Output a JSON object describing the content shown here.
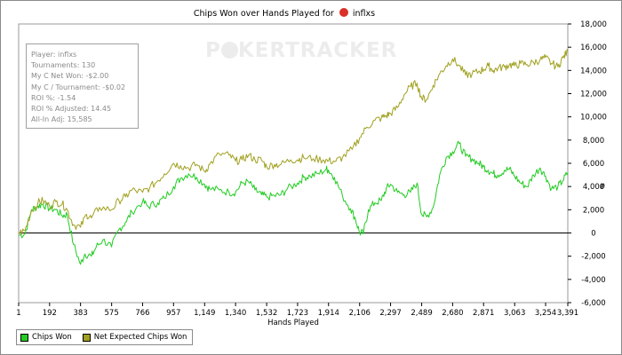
{
  "chart_data": {
    "type": "line",
    "title_prefix": "Chips Won over Hands Played for",
    "title_player": "inflxs",
    "xlabel": "Hands Played",
    "ylabel": "",
    "y_unit_label": "#",
    "xlim": [
      1,
      3391
    ],
    "ylim": [
      -6000,
      18000
    ],
    "x_ticks": [
      1,
      192,
      383,
      575,
      766,
      957,
      1149,
      1340,
      1532,
      1723,
      1914,
      2106,
      2297,
      2489,
      2680,
      2871,
      3063,
      3254,
      3391
    ],
    "x_tick_labels": [
      "1",
      "192",
      "383",
      "575",
      "766",
      "957",
      "1,149",
      "1,340",
      "1,532",
      "1,723",
      "1,914",
      "2,106",
      "2,297",
      "2,489",
      "2,680",
      "2,871",
      "3,063",
      "3,254",
      "3,391"
    ],
    "y_ticks": [
      -6000,
      -4000,
      -2000,
      0,
      2000,
      4000,
      6000,
      8000,
      10000,
      12000,
      14000,
      16000,
      18000
    ],
    "y_tick_labels": [
      "-6,000",
      "-4,000",
      "-2,000",
      "0",
      "2,000",
      "4,000",
      "6,000",
      "8,000",
      "10,000",
      "12,000",
      "14,000",
      "16,000",
      "18,000"
    ],
    "series": [
      {
        "name": "Chips Won",
        "color": "#22cc22",
        "points": [
          [
            1,
            -200
          ],
          [
            40,
            -100
          ],
          [
            80,
            2000
          ],
          [
            120,
            2300
          ],
          [
            150,
            2500
          ],
          [
            192,
            2100
          ],
          [
            230,
            2000
          ],
          [
            270,
            1500
          ],
          [
            300,
            1600
          ],
          [
            340,
            -1000
          ],
          [
            383,
            -2700
          ],
          [
            410,
            -1800
          ],
          [
            450,
            -2000
          ],
          [
            480,
            -1200
          ],
          [
            520,
            -600
          ],
          [
            575,
            -1200
          ],
          [
            620,
            300
          ],
          [
            660,
            900
          ],
          [
            700,
            1800
          ],
          [
            766,
            2700
          ],
          [
            800,
            2300
          ],
          [
            860,
            2600
          ],
          [
            900,
            3000
          ],
          [
            957,
            4000
          ],
          [
            1000,
            4700
          ],
          [
            1050,
            5100
          ],
          [
            1100,
            4800
          ],
          [
            1149,
            4200
          ],
          [
            1180,
            3800
          ],
          [
            1240,
            3700
          ],
          [
            1300,
            3500
          ],
          [
            1340,
            3500
          ],
          [
            1380,
            4300
          ],
          [
            1420,
            4400
          ],
          [
            1460,
            3700
          ],
          [
            1500,
            3300
          ],
          [
            1532,
            3100
          ],
          [
            1580,
            3200
          ],
          [
            1620,
            3300
          ],
          [
            1660,
            3800
          ],
          [
            1723,
            4300
          ],
          [
            1760,
            4800
          ],
          [
            1800,
            4900
          ],
          [
            1850,
            5100
          ],
          [
            1900,
            5500
          ],
          [
            1914,
            5400
          ],
          [
            1950,
            4800
          ],
          [
            2000,
            3200
          ],
          [
            2050,
            2100
          ],
          [
            2080,
            1200
          ],
          [
            2106,
            0
          ],
          [
            2130,
            0
          ],
          [
            2160,
            2000
          ],
          [
            2200,
            2600
          ],
          [
            2240,
            2800
          ],
          [
            2270,
            3800
          ],
          [
            2297,
            4200
          ],
          [
            2340,
            3500
          ],
          [
            2380,
            3300
          ],
          [
            2420,
            3500
          ],
          [
            2460,
            4300
          ],
          [
            2489,
            1600
          ],
          [
            2520,
            1400
          ],
          [
            2560,
            2200
          ],
          [
            2600,
            5000
          ],
          [
            2640,
            6500
          ],
          [
            2680,
            7000
          ],
          [
            2720,
            7700
          ],
          [
            2760,
            6600
          ],
          [
            2800,
            6400
          ],
          [
            2840,
            6000
          ],
          [
            2871,
            5700
          ],
          [
            2900,
            5400
          ],
          [
            2930,
            5100
          ],
          [
            2960,
            5000
          ],
          [
            3000,
            5400
          ],
          [
            3030,
            5500
          ],
          [
            3063,
            4900
          ],
          [
            3100,
            4300
          ],
          [
            3140,
            4000
          ],
          [
            3180,
            5000
          ],
          [
            3220,
            5600
          ],
          [
            3254,
            4900
          ],
          [
            3290,
            3800
          ],
          [
            3330,
            4000
          ],
          [
            3360,
            4500
          ],
          [
            3391,
            5200
          ]
        ]
      },
      {
        "name": "Net Expected Chips Won",
        "color": "#a0a020",
        "points": [
          [
            1,
            0
          ],
          [
            40,
            200
          ],
          [
            80,
            1900
          ],
          [
            120,
            2600
          ],
          [
            150,
            2800
          ],
          [
            192,
            2300
          ],
          [
            230,
            2700
          ],
          [
            270,
            2500
          ],
          [
            300,
            2000
          ],
          [
            340,
            700
          ],
          [
            383,
            500
          ],
          [
            420,
            1600
          ],
          [
            450,
            1300
          ],
          [
            500,
            2200
          ],
          [
            575,
            2000
          ],
          [
            620,
            2800
          ],
          [
            660,
            3100
          ],
          [
            700,
            3700
          ],
          [
            766,
            3500
          ],
          [
            810,
            3900
          ],
          [
            860,
            4500
          ],
          [
            900,
            5100
          ],
          [
            957,
            6000
          ],
          [
            1000,
            5800
          ],
          [
            1050,
            5600
          ],
          [
            1100,
            5900
          ],
          [
            1149,
            5300
          ],
          [
            1180,
            5900
          ],
          [
            1240,
            6800
          ],
          [
            1300,
            6700
          ],
          [
            1340,
            6200
          ],
          [
            1380,
            6300
          ],
          [
            1420,
            6700
          ],
          [
            1460,
            6300
          ],
          [
            1500,
            6300
          ],
          [
            1532,
            5700
          ],
          [
            1580,
            5900
          ],
          [
            1620,
            5900
          ],
          [
            1680,
            6300
          ],
          [
            1723,
            6300
          ],
          [
            1760,
            6500
          ],
          [
            1820,
            6400
          ],
          [
            1880,
            6300
          ],
          [
            1914,
            6200
          ],
          [
            1960,
            6200
          ],
          [
            2000,
            6500
          ],
          [
            2060,
            7200
          ],
          [
            2106,
            8200
          ],
          [
            2150,
            9100
          ],
          [
            2200,
            9700
          ],
          [
            2240,
            9900
          ],
          [
            2270,
            10100
          ],
          [
            2297,
            10300
          ],
          [
            2340,
            10800
          ],
          [
            2380,
            11900
          ],
          [
            2420,
            12600
          ],
          [
            2460,
            12900
          ],
          [
            2489,
            11600
          ],
          [
            2520,
            11500
          ],
          [
            2560,
            12700
          ],
          [
            2600,
            13700
          ],
          [
            2640,
            14400
          ],
          [
            2680,
            15000
          ],
          [
            2720,
            14400
          ],
          [
            2760,
            13600
          ],
          [
            2800,
            13700
          ],
          [
            2840,
            13900
          ],
          [
            2871,
            14100
          ],
          [
            2900,
            14400
          ],
          [
            2930,
            14000
          ],
          [
            2960,
            14200
          ],
          [
            3000,
            14300
          ],
          [
            3030,
            14500
          ],
          [
            3063,
            14400
          ],
          [
            3100,
            14600
          ],
          [
            3140,
            14500
          ],
          [
            3180,
            14700
          ],
          [
            3220,
            14900
          ],
          [
            3254,
            15100
          ],
          [
            3290,
            14600
          ],
          [
            3330,
            14300
          ],
          [
            3360,
            15100
          ],
          [
            3391,
            15600
          ]
        ]
      }
    ],
    "legend_placement": "bottom-left",
    "grid": false
  },
  "watermark": {
    "prefix": "P",
    "rest": "KERTRACKER"
  },
  "stats_box": {
    "player": "Player: inflxs",
    "tournaments": "Tournaments: 130",
    "net_won": "My C Net Won: -$2.00",
    "per_tournament": "My C / Tournament: -$0.02",
    "roi": "ROI %: -1.54",
    "roi_adjusted": "ROI % Adjusted: 14.45",
    "allin_adj": "All-In Adj: 15,585"
  }
}
